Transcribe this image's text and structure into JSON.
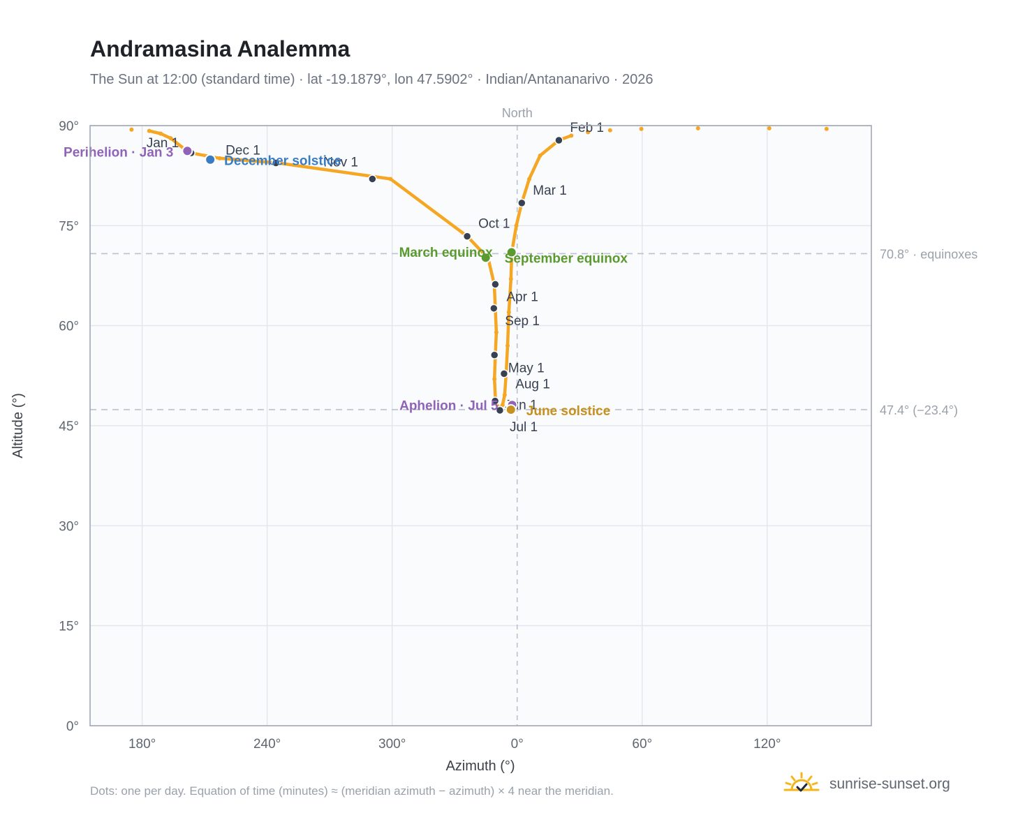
{
  "header": {
    "title": "Andramasina Analemma",
    "subtitle": "The Sun at 12:00 (standard time) · lat -19.1879°, lon 47.5902° · Indian/Antananarivo · 2026"
  },
  "footer": {
    "note": "Dots: one per day. Equation of time (minutes) ≈ (meridian azimuth − azimuth) × 4 near the meridian.",
    "brand": "sunrise-sunset.org",
    "brand_icon": "sun-check-icon"
  },
  "colors": {
    "curve": "#f5a623",
    "month_marker": "#374151",
    "equinox": "#5a9a2f",
    "december_solstice": "#3a7cc1",
    "june_solstice": "#c8901c",
    "apsis": "#8e63b8",
    "plot_background": "#fafbfd",
    "grid": "#e3e7ed",
    "reference_line": "#b9c2cf"
  },
  "chart_data": {
    "type": "scatter",
    "xlabel": "Azimuth (°)",
    "ylabel": "Altitude (°)",
    "xlim": [
      155,
      170
    ],
    "ylim": [
      0,
      90
    ],
    "x_axis_note": "azimuth axis centred on North (0°), running 155° → 360°/0° → 170°",
    "x_ticks": [
      {
        "value": 180,
        "label": "180°"
      },
      {
        "value": 240,
        "label": "240°"
      },
      {
        "value": 300,
        "label": "300°"
      },
      {
        "value": 0,
        "label": "0°"
      },
      {
        "value": 60,
        "label": "60°"
      },
      {
        "value": 120,
        "label": "120°"
      }
    ],
    "y_ticks": [
      {
        "value": 0,
        "label": "0°"
      },
      {
        "value": 15,
        "label": "15°"
      },
      {
        "value": 30,
        "label": "30°"
      },
      {
        "value": 45,
        "label": "45°"
      },
      {
        "value": 60,
        "label": "60°"
      },
      {
        "value": 75,
        "label": "75°"
      },
      {
        "value": 90,
        "label": "90°"
      }
    ],
    "north_label": "North",
    "north_azimuth": 0,
    "grid": true,
    "reference_lines": [
      {
        "altitude": 70.8,
        "label": "70.8° · equinoxes"
      },
      {
        "altitude": 47.4,
        "label": "47.4° (−23.4°)"
      }
    ],
    "series": [
      {
        "points": [
          [
            174.9,
            89.4
          ],
          [
            183.4,
            89.2
          ],
          [
            188.9,
            88.8
          ],
          [
            193.7,
            88.1
          ],
          [
            200.7,
            86.4
          ],
          [
            203.5,
            85.9
          ],
          [
            217.2,
            85.1
          ],
          [
            245.2,
            84.4
          ],
          [
            299.2,
            82.0
          ],
          [
            336.0,
            73.4
          ],
          [
            346.1,
            70.1
          ],
          [
            349.0,
            66.2
          ],
          [
            349.5,
            62.6
          ],
          [
            350.0,
            59.0
          ],
          [
            349.5,
            55.6
          ],
          [
            349.1,
            52.0
          ],
          [
            349.6,
            48.7
          ],
          [
            351.4,
            47.4
          ],
          [
            353.0,
            48.1
          ],
          [
            354.0,
            49.6
          ],
          [
            354.7,
            52.8
          ],
          [
            355.4,
            57.0
          ],
          [
            356.0,
            62.0
          ],
          [
            357.0,
            67.0
          ],
          [
            357.4,
            71.0
          ],
          [
            359.6,
            75.0
          ],
          [
            2.2,
            78.4
          ],
          [
            5.8,
            82.0
          ],
          [
            11.0,
            85.5
          ],
          [
            20.0,
            87.8
          ],
          [
            26.0,
            88.5
          ],
          [
            34.0,
            89.0
          ],
          [
            44.6,
            89.3
          ],
          [
            59.6,
            89.5
          ],
          [
            86.8,
            89.6
          ],
          [
            121.0,
            89.6
          ],
          [
            148.5,
            89.5
          ]
        ]
      }
    ],
    "month_markers": [
      {
        "label": "Jan 1",
        "azimuth": 203.5,
        "altitude": 85.9
      },
      {
        "label": "Feb 1",
        "azimuth": 20.0,
        "altitude": 87.8
      },
      {
        "label": "Mar 1",
        "azimuth": 2.2,
        "altitude": 78.4
      },
      {
        "label": "Apr 1",
        "azimuth": 349.5,
        "altitude": 66.2
      },
      {
        "label": "May 1",
        "azimuth": 353.7,
        "altitude": 52.8
      },
      {
        "label": "Jun 1",
        "azimuth": 349.4,
        "altitude": 48.7
      },
      {
        "label": "Jul 1",
        "azimuth": 351.7,
        "altitude": 47.3
      },
      {
        "label": "Aug 1",
        "azimuth": 349.1,
        "altitude": 55.6
      },
      {
        "label": "Sep 1",
        "azimuth": 348.8,
        "altitude": 62.6
      },
      {
        "label": "Oct 1",
        "azimuth": 336.0,
        "altitude": 73.4
      },
      {
        "label": "Nov 1",
        "azimuth": 290.5,
        "altitude": 82.0
      },
      {
        "label": "Dec 1",
        "azimuth": 244.2,
        "altitude": 84.4
      }
    ],
    "events": [
      {
        "label": "Perihelion · Jan 3",
        "azimuth": 201.7,
        "altitude": 86.2,
        "kind": "apsis"
      },
      {
        "label": "December solstice",
        "azimuth": 212.7,
        "altitude": 84.9,
        "kind": "december_solstice"
      },
      {
        "label": "March equinox",
        "azimuth": 344.9,
        "altitude": 70.2,
        "kind": "equinox"
      },
      {
        "label": "September equinox",
        "azimuth": 357.3,
        "altitude": 71.0,
        "kind": "equinox"
      },
      {
        "label": "Aphelion · Jul 5",
        "azimuth": 357.6,
        "altitude": 48.1,
        "kind": "apsis"
      },
      {
        "label": "June solstice",
        "azimuth": 357.0,
        "altitude": 47.4,
        "kind": "june_solstice"
      }
    ]
  }
}
